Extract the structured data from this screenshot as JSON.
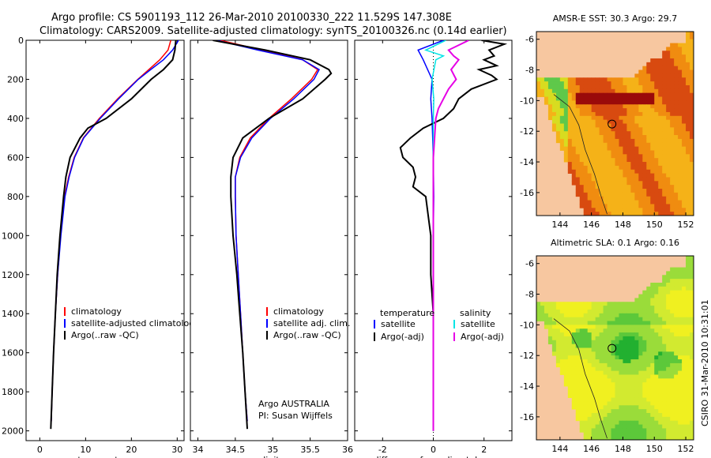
{
  "header": {
    "line1": "Argo profile: CS 5901193_112 26-Mar-2010 20100330_222 11.529S 147.308E",
    "line2": "Climatology: CARS2009. Satellite-adjusted climatology: synTS_20100326.nc (0.14d earlier)"
  },
  "colors": {
    "climatology": "#ff0000",
    "satellite": "#0000ff",
    "argo": "#000000",
    "satellite_salinity": "#00e5e5",
    "argo_adj_salinity": "#e600e6",
    "land": "#f7c7a0"
  },
  "chart_data": [
    {
      "type": "line",
      "name": "temperature-profile",
      "xlabel": "temperature",
      "ylabel": "",
      "xlim": [
        -3,
        31.5
      ],
      "ylim": [
        2050,
        0
      ],
      "xticks": [
        "0",
        "10",
        "20",
        "30"
      ],
      "yticks": [
        "0",
        "200",
        "400",
        "600",
        "800",
        "1000",
        "1200",
        "1400",
        "1600",
        "1800",
        "2000"
      ],
      "legend": [
        "climatology",
        "satellite-adjusted climatology",
        "Argo(..raw -QC)"
      ],
      "series": [
        {
          "name": "climatology",
          "depth": [
            0,
            50,
            100,
            150,
            200,
            300,
            400,
            500,
            600,
            700,
            800,
            1000,
            1200,
            1400,
            1600,
            1800,
            1950
          ],
          "values": [
            28.6,
            28.0,
            26.2,
            23.8,
            21.4,
            17.0,
            13.0,
            9.5,
            7.5,
            6.3,
            5.4,
            4.5,
            3.9,
            3.4,
            3.0,
            2.7,
            2.5
          ]
        },
        {
          "name": "satellite-adjusted climatology",
          "depth": [
            0,
            50,
            100,
            150,
            200,
            300,
            400,
            500,
            600,
            700,
            800,
            1000,
            1200,
            1400,
            1600,
            1800,
            1950
          ],
          "values": [
            30.3,
            29.0,
            27.0,
            24.2,
            21.5,
            17.2,
            13.2,
            9.6,
            7.6,
            6.4,
            5.5,
            4.6,
            3.9,
            3.4,
            3.0,
            2.7,
            2.5
          ]
        },
        {
          "name": "Argo(..raw -QC)",
          "depth": [
            0,
            50,
            100,
            150,
            200,
            300,
            400,
            450,
            500,
            600,
            700,
            800,
            1000,
            1200,
            1400,
            1600,
            1800,
            1990
          ],
          "values": [
            29.7,
            29.5,
            29.0,
            27.0,
            24.3,
            20.0,
            14.5,
            10.5,
            8.8,
            6.6,
            5.7,
            5.2,
            4.4,
            3.8,
            3.4,
            3.0,
            2.7,
            2.4
          ]
        }
      ]
    },
    {
      "type": "line",
      "name": "salinity-profile",
      "xlabel": "salinity",
      "xlim": [
        33.9,
        36.0
      ],
      "ylim": [
        2050,
        0
      ],
      "xticks": [
        "34",
        "34.5",
        "35",
        "35.5",
        "36"
      ],
      "legend": [
        "climatology",
        "satellite adj. clim.",
        "Argo(..raw -QC)"
      ],
      "annotation": [
        "Argo AUSTRALIA",
        "PI: Susan Wijffels"
      ],
      "series": [
        {
          "name": "climatology",
          "depth": [
            0,
            50,
            100,
            150,
            200,
            300,
            400,
            500,
            600,
            700,
            800,
            1000,
            1200,
            1400,
            1600,
            1800,
            1950
          ],
          "values": [
            34.3,
            34.85,
            35.4,
            35.6,
            35.52,
            35.25,
            34.95,
            34.7,
            34.56,
            34.5,
            34.5,
            34.51,
            34.54,
            34.57,
            34.6,
            34.63,
            34.66
          ]
        },
        {
          "name": "satellite adj. clim.",
          "depth": [
            0,
            50,
            100,
            150,
            200,
            300,
            400,
            500,
            600,
            700,
            800,
            1000,
            1200,
            1400,
            1600,
            1800,
            1950
          ],
          "values": [
            34.25,
            34.8,
            35.4,
            35.62,
            35.55,
            35.28,
            34.97,
            34.72,
            34.57,
            34.5,
            34.5,
            34.51,
            34.54,
            34.57,
            34.6,
            34.63,
            34.66
          ]
        },
        {
          "name": "Argo(..raw -QC)",
          "depth": [
            0,
            50,
            100,
            150,
            170,
            200,
            300,
            400,
            500,
            600,
            700,
            800,
            1000,
            1200,
            1400,
            1600,
            1800,
            1990
          ],
          "values": [
            34.2,
            34.9,
            35.5,
            35.75,
            35.78,
            35.7,
            35.4,
            34.95,
            34.6,
            34.47,
            34.44,
            34.44,
            34.47,
            34.52,
            34.56,
            34.6,
            34.63,
            34.66
          ]
        }
      ]
    },
    {
      "type": "line",
      "name": "difference-profile",
      "xlabel": "difference from climatology",
      "xlim": [
        -3.1,
        3.1
      ],
      "ylim": [
        2050,
        0
      ],
      "xticks": [
        "-2",
        "0",
        "2"
      ],
      "legend": {
        "temperature_header": "temperature",
        "salinity_header": "salinity",
        "entries": [
          "satellite",
          "Argo(-adj)",
          "satellite",
          "Argo(-adj)"
        ]
      },
      "series": [
        {
          "name": "temperature satellite",
          "depth": [
            0,
            50,
            100,
            200,
            300,
            400,
            600,
            800,
            1000,
            1400,
            1800,
            2000
          ],
          "values": [
            0.4,
            -0.6,
            -0.4,
            -0.05,
            -0.1,
            -0.05,
            0,
            0.02,
            0,
            0,
            0,
            0
          ]
        },
        {
          "name": "temperature Argo(-adj)",
          "depth": [
            0,
            20,
            50,
            80,
            100,
            130,
            150,
            180,
            200,
            250,
            300,
            350,
            400,
            450,
            500,
            550,
            600,
            650,
            700,
            750,
            800,
            900,
            1000,
            1200,
            1400,
            1600,
            1800,
            2000
          ],
          "values": [
            1.9,
            2.8,
            2.2,
            2.4,
            2.0,
            2.5,
            1.8,
            2.3,
            2.5,
            1.5,
            1.0,
            0.8,
            0.4,
            -0.4,
            -0.9,
            -1.3,
            -1.2,
            -0.8,
            -0.7,
            -0.8,
            -0.3,
            -0.2,
            -0.1,
            -0.1,
            0,
            0,
            0,
            0
          ]
        },
        {
          "name": "salinity satellite",
          "depth": [
            0,
            50,
            80,
            100,
            200,
            300,
            400,
            600,
            800,
            1000,
            1400,
            1800,
            2000
          ],
          "values": [
            0.5,
            -0.3,
            0.4,
            0.1,
            -0.05,
            0.02,
            0,
            0,
            0,
            0,
            0,
            0,
            0
          ]
        },
        {
          "name": "salinity Argo(-adj)",
          "depth": [
            0,
            50,
            80,
            100,
            150,
            200,
            250,
            300,
            350,
            400,
            500,
            600,
            800,
            1000,
            1400,
            1800,
            2000
          ],
          "values": [
            1.4,
            0.6,
            0.8,
            1.0,
            0.7,
            0.9,
            0.6,
            0.4,
            0.2,
            0.1,
            0.05,
            0,
            0,
            0,
            0,
            0,
            0
          ]
        }
      ]
    },
    {
      "type": "heatmap",
      "name": "sst-map",
      "title": "AMSR-E SST: 30.3 Argo: 29.7",
      "xlim": [
        142.5,
        152.5
      ],
      "ylim": [
        -17.5,
        -5.5
      ],
      "xticks": [
        "144",
        "146",
        "148",
        "150",
        "152"
      ],
      "yticks": [
        "-6",
        "-8",
        "-10",
        "-12",
        "-14",
        "-16"
      ],
      "float_position": {
        "lon": 147.308,
        "lat": -11.529
      }
    },
    {
      "type": "heatmap",
      "name": "sla-map",
      "title": "Altimetric SLA: 0.1 Argo: 0.16",
      "xlim": [
        142.5,
        152.5
      ],
      "ylim": [
        -17.5,
        -5.5
      ],
      "xticks": [
        "144",
        "146",
        "148",
        "150",
        "152"
      ],
      "yticks": [
        "-6",
        "-8",
        "-10",
        "-12",
        "-14",
        "-16"
      ],
      "float_position": {
        "lon": 147.308,
        "lat": -11.529
      }
    }
  ],
  "footer": {
    "stamp": "CSIRO 31-Mar-2010 10:31:01"
  }
}
